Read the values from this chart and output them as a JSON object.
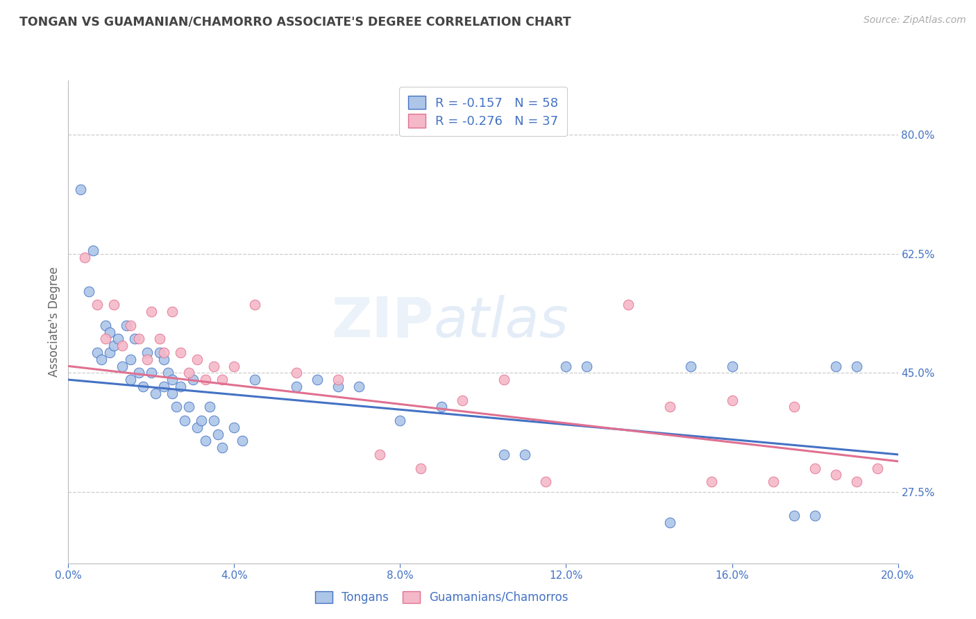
{
  "title": "TONGAN VS GUAMANIAN/CHAMORRO ASSOCIATE'S DEGREE CORRELATION CHART",
  "source": "Source: ZipAtlas.com",
  "ylabel": "Associate's Degree",
  "right_yticks": [
    27.5,
    45.0,
    62.5,
    80.0
  ],
  "right_ytick_labels": [
    "27.5%",
    "45.0%",
    "62.5%",
    "80.0%"
  ],
  "legend_label1": "R = -0.157   N = 58",
  "legend_label2": "R = -0.276   N = 37",
  "scatter_color1": "#adc6e8",
  "scatter_color2": "#f5b8c8",
  "edge_color1": "#4472c4",
  "edge_color2": "#e07090",
  "line_color1": "#4472c4",
  "line_color2": "#e07090",
  "legend_bottom_label1": "Tongans",
  "legend_bottom_label2": "Guamanians/Chamorros",
  "watermark_zip": "ZIP",
  "watermark_atlas": "atlas",
  "title_color": "#444444",
  "axis_label_color": "#4472c4",
  "xmin": 0.0,
  "xmax": 20.0,
  "ymin": 17.0,
  "ymax": 88.0,
  "tonga_line_x": [
    0.0,
    20.0
  ],
  "tonga_line_y": [
    44.0,
    33.0
  ],
  "guam_line_x": [
    0.0,
    20.0
  ],
  "guam_line_y": [
    46.0,
    32.0
  ],
  "tx": [
    0.3,
    0.5,
    0.6,
    0.7,
    0.8,
    0.9,
    1.0,
    1.0,
    1.1,
    1.2,
    1.3,
    1.4,
    1.5,
    1.5,
    1.6,
    1.7,
    1.8,
    1.9,
    2.0,
    2.1,
    2.2,
    2.3,
    2.3,
    2.4,
    2.5,
    2.5,
    2.6,
    2.7,
    2.8,
    2.9,
    3.0,
    3.1,
    3.2,
    3.3,
    3.4,
    3.5,
    3.6,
    3.7,
    4.0,
    4.2,
    4.5,
    5.5,
    6.0,
    6.5,
    7.0,
    8.0,
    9.0,
    10.5,
    11.0,
    12.0,
    12.5,
    14.5,
    15.0,
    16.0,
    17.5,
    18.0,
    18.5,
    19.0
  ],
  "ty": [
    72.0,
    57.0,
    63.0,
    48.0,
    47.0,
    52.0,
    51.0,
    48.0,
    49.0,
    50.0,
    46.0,
    52.0,
    47.0,
    44.0,
    50.0,
    45.0,
    43.0,
    48.0,
    45.0,
    42.0,
    48.0,
    43.0,
    47.0,
    45.0,
    44.0,
    42.0,
    40.0,
    43.0,
    38.0,
    40.0,
    44.0,
    37.0,
    38.0,
    35.0,
    40.0,
    38.0,
    36.0,
    34.0,
    37.0,
    35.0,
    44.0,
    43.0,
    44.0,
    43.0,
    43.0,
    38.0,
    40.0,
    33.0,
    33.0,
    46.0,
    46.0,
    23.0,
    46.0,
    46.0,
    24.0,
    24.0,
    46.0,
    46.0
  ],
  "gx": [
    0.4,
    0.7,
    0.9,
    1.1,
    1.3,
    1.5,
    1.7,
    1.9,
    2.0,
    2.2,
    2.3,
    2.5,
    2.7,
    2.9,
    3.1,
    3.3,
    3.5,
    3.7,
    4.0,
    4.5,
    5.5,
    6.5,
    7.5,
    8.5,
    9.5,
    10.5,
    11.5,
    13.5,
    14.5,
    15.5,
    16.0,
    17.0,
    17.5,
    18.0,
    18.5,
    19.0,
    19.5
  ],
  "gy": [
    62.0,
    55.0,
    50.0,
    55.0,
    49.0,
    52.0,
    50.0,
    47.0,
    54.0,
    50.0,
    48.0,
    54.0,
    48.0,
    45.0,
    47.0,
    44.0,
    46.0,
    44.0,
    46.0,
    55.0,
    45.0,
    44.0,
    33.0,
    31.0,
    41.0,
    44.0,
    29.0,
    55.0,
    40.0,
    29.0,
    41.0,
    29.0,
    40.0,
    31.0,
    30.0,
    29.0,
    31.0
  ]
}
